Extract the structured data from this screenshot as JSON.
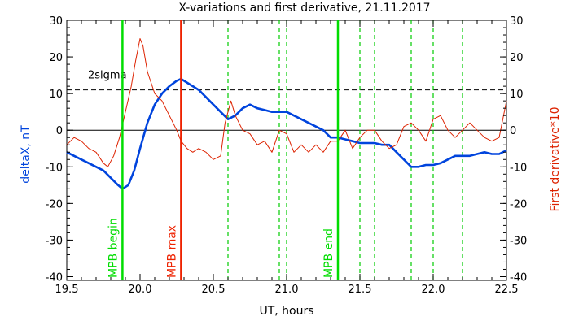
{
  "chart_data": {
    "type": "line",
    "title": "X-variations and first derivative, 21.11.2017",
    "xlabel": "UT, hours",
    "ylabel_left": "deltaX, nT",
    "ylabel_right": "First derivative*10",
    "xlim": [
      19.5,
      22.5
    ],
    "ylim": [
      -41,
      30
    ],
    "xticks": [
      "19.5",
      "20.0",
      "20.5",
      "21.0",
      "21.5",
      "22.0",
      "22.5"
    ],
    "yticks": [
      "30",
      "20",
      "10",
      "0",
      "-10",
      "-20",
      "-30",
      "-40"
    ],
    "threshold": {
      "label": "2sigma",
      "value": 11
    },
    "zero_line": 0,
    "markers": [
      {
        "label": "MPB begin",
        "x": 19.88,
        "color": "#00dd00",
        "style": "solid"
      },
      {
        "label": "MPB max",
        "x": 20.28,
        "color": "#ee2200",
        "style": "solid"
      },
      {
        "label": "MPB end",
        "x": 21.35,
        "color": "#00dd00",
        "style": "solid"
      }
    ],
    "dashed_markers": [
      20.6,
      20.95,
      21.0,
      21.5,
      21.6,
      21.85,
      22.0,
      22.2
    ],
    "dashed_color": "#00cc00",
    "series": [
      {
        "color": "#0044dd",
        "x": [
          19.5,
          19.55,
          19.6,
          19.65,
          19.7,
          19.75,
          19.8,
          19.85,
          19.88,
          19.92,
          19.96,
          20.0,
          20.05,
          20.1,
          20.15,
          20.2,
          20.25,
          20.28,
          20.32,
          20.36,
          20.4,
          20.45,
          20.5,
          20.55,
          20.6,
          20.65,
          20.7,
          20.75,
          20.8,
          20.85,
          20.9,
          20.95,
          21.0,
          21.05,
          21.1,
          21.15,
          21.2,
          21.25,
          21.3,
          21.35,
          21.4,
          21.45,
          21.5,
          21.55,
          21.6,
          21.65,
          21.7,
          21.75,
          21.8,
          21.85,
          21.9,
          21.95,
          22.0,
          22.05,
          22.1,
          22.15,
          22.2,
          22.25,
          22.3,
          22.35,
          22.4,
          22.45,
          22.5
        ],
        "values": [
          -6,
          -7,
          -8,
          -9,
          -10,
          -11,
          -13,
          -15,
          -16,
          -15,
          -11,
          -5,
          2,
          7,
          10,
          12,
          13.5,
          14,
          13,
          12,
          11,
          9,
          7,
          5,
          3,
          4,
          6,
          7,
          6,
          5.5,
          5,
          5,
          5,
          4,
          3,
          2,
          1,
          0,
          -2,
          -2,
          -2.5,
          -3,
          -3.5,
          -3.5,
          -3.5,
          -4,
          -4,
          -6,
          -8,
          -10,
          -10,
          -9.5,
          -9.5,
          -9,
          -8,
          -7,
          -7,
          -7,
          -6.5,
          -6,
          -6.5,
          -6.5,
          -5.5
        ]
      },
      {
        "color": "#dd2200",
        "x": [
          19.5,
          19.55,
          19.6,
          19.65,
          19.7,
          19.75,
          19.78,
          19.82,
          19.86,
          19.9,
          19.94,
          19.97,
          20.0,
          20.02,
          20.05,
          20.1,
          20.15,
          20.2,
          20.25,
          20.28,
          20.32,
          20.36,
          20.4,
          20.45,
          20.5,
          20.55,
          20.58,
          20.62,
          20.65,
          20.7,
          20.75,
          20.8,
          20.85,
          20.9,
          20.95,
          21.0,
          21.05,
          21.1,
          21.15,
          21.2,
          21.25,
          21.3,
          21.35,
          21.4,
          21.45,
          21.5,
          21.55,
          21.6,
          21.65,
          21.7,
          21.75,
          21.8,
          21.85,
          21.9,
          21.95,
          22.0,
          22.05,
          22.1,
          22.15,
          22.2,
          22.25,
          22.3,
          22.35,
          22.4,
          22.45,
          22.5
        ],
        "values": [
          -4,
          -2,
          -3,
          -5,
          -6,
          -9,
          -10,
          -7,
          -2,
          5,
          12,
          19,
          25,
          23,
          16,
          10,
          8,
          4,
          0,
          -3,
          -5,
          -6,
          -5,
          -6,
          -8,
          -7,
          2,
          8,
          4,
          0,
          -1,
          -4,
          -3,
          -6,
          0,
          -1,
          -6,
          -4,
          -6,
          -4,
          -6,
          -3,
          -3,
          0,
          -5,
          -2,
          0,
          0,
          -3,
          -5,
          -4,
          1,
          2,
          0,
          -3,
          3,
          4,
          0,
          -2,
          0,
          2,
          0,
          -2,
          -3,
          -2,
          8
        ]
      }
    ]
  }
}
